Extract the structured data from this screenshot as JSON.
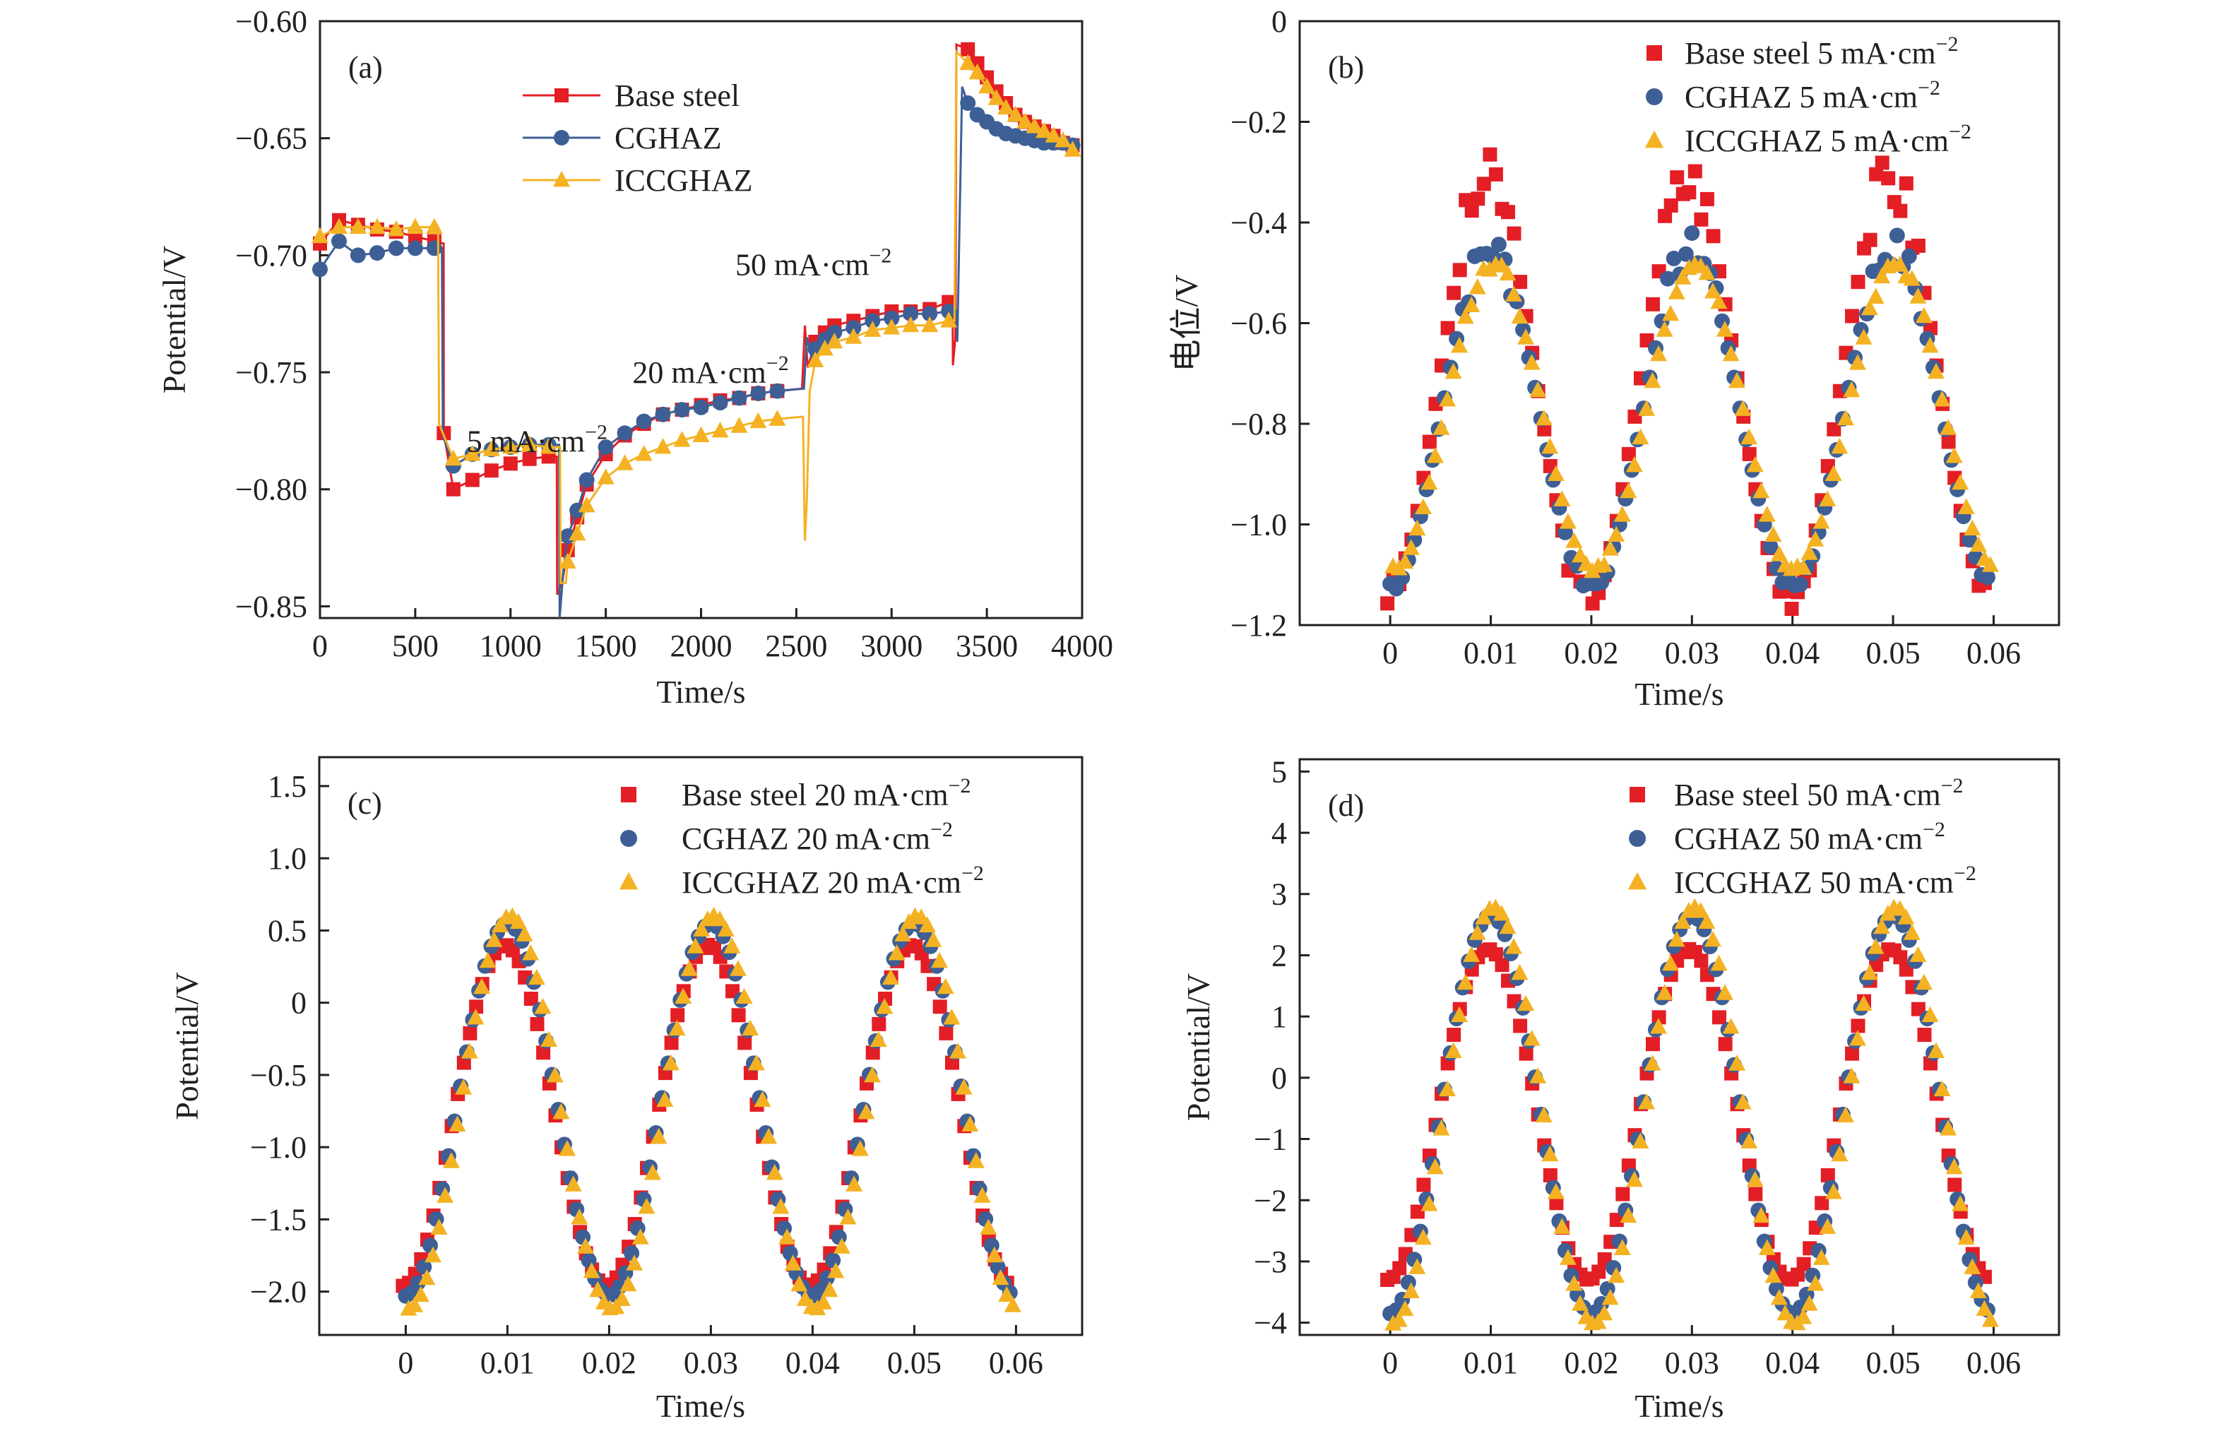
{
  "figure": {
    "colors": {
      "base": "#e31e25",
      "cghaz": "#3d5f95",
      "iccghaz": "#f4b223",
      "axis": "#231f20"
    }
  },
  "chart_data": [
    {
      "id": "a",
      "panel_letter": "(a)",
      "type": "line",
      "xlabel": "Time/s",
      "ylabel": "Potential/V",
      "xlim": [
        0,
        4000
      ],
      "ylim": [
        -0.855,
        -0.6
      ],
      "xticks": [
        0,
        500,
        1000,
        1500,
        2000,
        2500,
        3000,
        3500,
        4000
      ],
      "xtick_labels": [
        "0",
        "500",
        "1000",
        "1500",
        "2000",
        "2500",
        "3000",
        "3500",
        "4000"
      ],
      "yticks": [
        -0.6,
        -0.65,
        -0.7,
        -0.75,
        -0.8,
        -0.85
      ],
      "ytick_labels": [
        "−0.60",
        "−0.65",
        "−0.70",
        "−0.75",
        "−0.80",
        "−0.85"
      ],
      "legend_placement": "top-center",
      "annotations": [
        {
          "text": "5 mA·cm",
          "sup": "−2",
          "x": 770,
          "y": -0.784
        },
        {
          "text": "20 mA·cm",
          "sup": "−2",
          "x": 1640,
          "y": -0.7545
        },
        {
          "text": "50 mA·cm",
          "sup": "−2",
          "x": 2180,
          "y": -0.7085
        }
      ],
      "series": [
        {
          "name": "Base steel",
          "marker": "square",
          "color": "#e31e25",
          "x": [
            0,
            100,
            200,
            300,
            400,
            500,
            600,
            649,
            650,
            700,
            800,
            900,
            1000,
            1100,
            1200,
            1243,
            1245,
            1270,
            1300,
            1350,
            1400,
            1500,
            1600,
            1700,
            1800,
            1900,
            2000,
            2100,
            2200,
            2300,
            2400,
            2530,
            2545,
            2560,
            2600,
            2650,
            2700,
            2800,
            2900,
            3000,
            3100,
            3200,
            3300,
            3320,
            3322,
            3335,
            3340,
            3400,
            3450,
            3500,
            3550,
            3600,
            3650,
            3700,
            3750,
            3800,
            3850,
            3900,
            3950
          ],
          "y": [
            -0.695,
            -0.685,
            -0.687,
            -0.689,
            -0.69,
            -0.692,
            -0.694,
            -0.695,
            -0.776,
            -0.8,
            -0.796,
            -0.792,
            -0.789,
            -0.787,
            -0.786,
            -0.786,
            -0.845,
            -0.84,
            -0.826,
            -0.812,
            -0.798,
            -0.785,
            -0.777,
            -0.772,
            -0.768,
            -0.766,
            -0.764,
            -0.762,
            -0.761,
            -0.759,
            -0.758,
            -0.757,
            -0.73,
            -0.748,
            -0.737,
            -0.733,
            -0.73,
            -0.728,
            -0.726,
            -0.724,
            -0.724,
            -0.723,
            -0.72,
            -0.72,
            -0.747,
            -0.735,
            -0.61,
            -0.612,
            -0.618,
            -0.624,
            -0.63,
            -0.635,
            -0.64,
            -0.643,
            -0.645,
            -0.647,
            -0.649,
            -0.652,
            -0.653
          ]
        },
        {
          "name": "CGHAZ",
          "marker": "circle",
          "color": "#3d5f95",
          "x": [
            0,
            100,
            200,
            300,
            400,
            500,
            600,
            640,
            645,
            700,
            800,
            900,
            1000,
            1100,
            1200,
            1255,
            1258,
            1280,
            1300,
            1350,
            1400,
            1500,
            1600,
            1700,
            1800,
            1900,
            2000,
            2100,
            2200,
            2300,
            2400,
            2540,
            2555,
            2580,
            2600,
            2650,
            2700,
            2800,
            2900,
            3000,
            3100,
            3200,
            3300,
            3340,
            3345,
            3370,
            3400,
            3450,
            3500,
            3550,
            3600,
            3650,
            3700,
            3750,
            3800,
            3850,
            3900,
            3950
          ],
          "y": [
            -0.706,
            -0.694,
            -0.7,
            -0.699,
            -0.697,
            -0.697,
            -0.697,
            -0.697,
            -0.777,
            -0.79,
            -0.785,
            -0.783,
            -0.782,
            -0.781,
            -0.781,
            -0.781,
            -0.855,
            -0.832,
            -0.82,
            -0.809,
            -0.796,
            -0.782,
            -0.776,
            -0.771,
            -0.768,
            -0.766,
            -0.765,
            -0.763,
            -0.761,
            -0.759,
            -0.758,
            -0.757,
            -0.735,
            -0.744,
            -0.74,
            -0.736,
            -0.733,
            -0.731,
            -0.728,
            -0.727,
            -0.725,
            -0.725,
            -0.724,
            -0.724,
            -0.737,
            -0.628,
            -0.635,
            -0.64,
            -0.643,
            -0.646,
            -0.648,
            -0.649,
            -0.65,
            -0.651,
            -0.652,
            -0.652,
            -0.652,
            -0.653
          ]
        },
        {
          "name": "ICCGHAZ",
          "marker": "triangle",
          "color": "#f4b223",
          "x": [
            0,
            100,
            200,
            300,
            400,
            500,
            600,
            620,
            625,
            700,
            800,
            900,
            1000,
            1100,
            1200,
            1260,
            1263,
            1290,
            1300,
            1350,
            1400,
            1500,
            1600,
            1700,
            1800,
            1900,
            2000,
            2100,
            2200,
            2300,
            2400,
            2535,
            2545,
            2555,
            2570,
            2600,
            2650,
            2700,
            2800,
            2900,
            3000,
            3100,
            3200,
            3300,
            3330,
            3340,
            3400,
            3450,
            3500,
            3550,
            3600,
            3650,
            3700,
            3750,
            3800,
            3850,
            3900,
            3950
          ],
          "y": [
            -0.692,
            -0.688,
            -0.688,
            -0.688,
            -0.689,
            -0.688,
            -0.688,
            -0.688,
            -0.772,
            -0.787,
            -0.785,
            -0.783,
            -0.782,
            -0.781,
            -0.782,
            -0.782,
            -0.84,
            -0.84,
            -0.831,
            -0.819,
            -0.807,
            -0.795,
            -0.789,
            -0.785,
            -0.782,
            -0.779,
            -0.777,
            -0.775,
            -0.773,
            -0.771,
            -0.77,
            -0.769,
            -0.822,
            -0.805,
            -0.758,
            -0.745,
            -0.74,
            -0.737,
            -0.735,
            -0.732,
            -0.731,
            -0.73,
            -0.73,
            -0.728,
            -0.728,
            -0.613,
            -0.618,
            -0.622,
            -0.628,
            -0.633,
            -0.637,
            -0.64,
            -0.643,
            -0.645,
            -0.647,
            -0.649,
            -0.651,
            -0.655
          ]
        }
      ]
    },
    {
      "id": "b",
      "panel_letter": "(b)",
      "type": "scatter",
      "xlabel": "Time/s",
      "ylabel": "电位/V",
      "xlim": [
        -0.009,
        0.0665
      ],
      "ylim": [
        -1.2,
        0
      ],
      "xticks": [
        0,
        0.01,
        0.02,
        0.03,
        0.04,
        0.05,
        0.06
      ],
      "xtick_labels": [
        "0",
        "0.01",
        "0.02",
        "0.03",
        "0.04",
        "0.05",
        "0.06"
      ],
      "yticks": [
        0,
        -0.2,
        -0.4,
        -0.6,
        -0.8,
        -1.0,
        -1.2
      ],
      "ytick_labels": [
        "0",
        "−0.2",
        "−0.4",
        "−0.6",
        "−0.8",
        "−1.0",
        "−1.2"
      ],
      "legend_placement": "top-right",
      "x_start": 0,
      "x_step": 0.0006,
      "points": 100,
      "series": [
        {
          "name": "Base steel 5 mA·cm",
          "sup": "−2",
          "marker": "square",
          "color": "#e31e25",
          "center": -0.735,
          "amplitude": 0.405,
          "peak_noise": 0.06,
          "seed": 3
        },
        {
          "name": "CGHAZ 5 mA·cm",
          "sup": "−2",
          "marker": "circle",
          "color": "#3d5f95",
          "center": -0.79,
          "amplitude": 0.33,
          "peak_noise": 0.035,
          "seed": 7
        },
        {
          "name": "ICCGHAZ 5 mA·cm",
          "sup": "−2",
          "marker": "triangle",
          "color": "#f4b223",
          "center": -0.79,
          "amplitude": 0.3,
          "peak_noise": 0.015,
          "seed": 11
        }
      ]
    },
    {
      "id": "c",
      "panel_letter": "(c)",
      "type": "scatter",
      "xlabel": "Time/s",
      "ylabel": "Potential/V",
      "xlim": [
        -0.0085,
        0.0665
      ],
      "ylim": [
        -2.3,
        1.7
      ],
      "xticks": [
        0,
        0.01,
        0.02,
        0.03,
        0.04,
        0.05,
        0.06
      ],
      "xtick_labels": [
        "0",
        "0.01",
        "0.02",
        "0.03",
        "0.04",
        "0.05",
        "0.06"
      ],
      "yticks": [
        1.5,
        1.0,
        0.5,
        0,
        -0.5,
        -1.0,
        -1.5,
        -2.0
      ],
      "ytick_labels": [
        "1.5",
        "1.0",
        "0.5",
        "0",
        "−0.5",
        "−1.0",
        "−1.5",
        "−2.0"
      ],
      "legend_placement": "top-right",
      "x_start": 0,
      "x_step": 0.0006,
      "points": 100,
      "series": [
        {
          "name": "Base steel 20 mA·cm",
          "sup": "−2",
          "marker": "square",
          "color": "#e31e25",
          "center": -0.78,
          "amplitude": 1.18,
          "peak_noise": 0,
          "seed": 1
        },
        {
          "name": "CGHAZ 20 mA·cm",
          "sup": "−2",
          "marker": "circle",
          "color": "#3d5f95",
          "center": -0.74,
          "amplitude": 1.29,
          "peak_noise": 0,
          "seed": 2
        },
        {
          "name": "ICCGHAZ 20 mA·cm",
          "sup": "−2",
          "marker": "triangle",
          "color": "#f4b223",
          "center": -0.76,
          "amplitude": 1.36,
          "peak_noise": 0,
          "seed": 4
        }
      ]
    },
    {
      "id": "d",
      "panel_letter": "(d)",
      "type": "scatter",
      "xlabel": "Time/s",
      "ylabel": "Potential/V",
      "xlim": [
        -0.009,
        0.0665
      ],
      "ylim": [
        -4.2,
        5.2
      ],
      "xticks": [
        0,
        0.01,
        0.02,
        0.03,
        0.04,
        0.05,
        0.06
      ],
      "xtick_labels": [
        "0",
        "0.01",
        "0.02",
        "0.03",
        "0.04",
        "0.05",
        "0.06"
      ],
      "yticks": [
        5,
        4,
        3,
        2,
        1,
        0,
        -1,
        -2,
        -3,
        -4
      ],
      "ytick_labels": [
        "5",
        "4",
        "3",
        "2",
        "1",
        "0",
        "−1",
        "−2",
        "−3",
        "−4"
      ],
      "legend_placement": "top-right",
      "x_start": 0,
      "x_step": 0.0006,
      "points": 100,
      "series": [
        {
          "name": "Base steel 50 mA·cm",
          "sup": "−2",
          "marker": "square",
          "color": "#e31e25",
          "center": -0.6,
          "amplitude": 2.7,
          "peak_noise": 0,
          "seed": 5
        },
        {
          "name": "CGHAZ 50 mA·cm",
          "sup": "−2",
          "marker": "circle",
          "color": "#3d5f95",
          "center": -0.6,
          "amplitude": 3.25,
          "peak_noise": 0,
          "seed": 6
        },
        {
          "name": "ICCGHAZ 50 mA·cm",
          "sup": "−2",
          "marker": "triangle",
          "color": "#f4b223",
          "center": -0.62,
          "amplitude": 3.4,
          "peak_noise": 0,
          "seed": 8
        }
      ]
    }
  ]
}
